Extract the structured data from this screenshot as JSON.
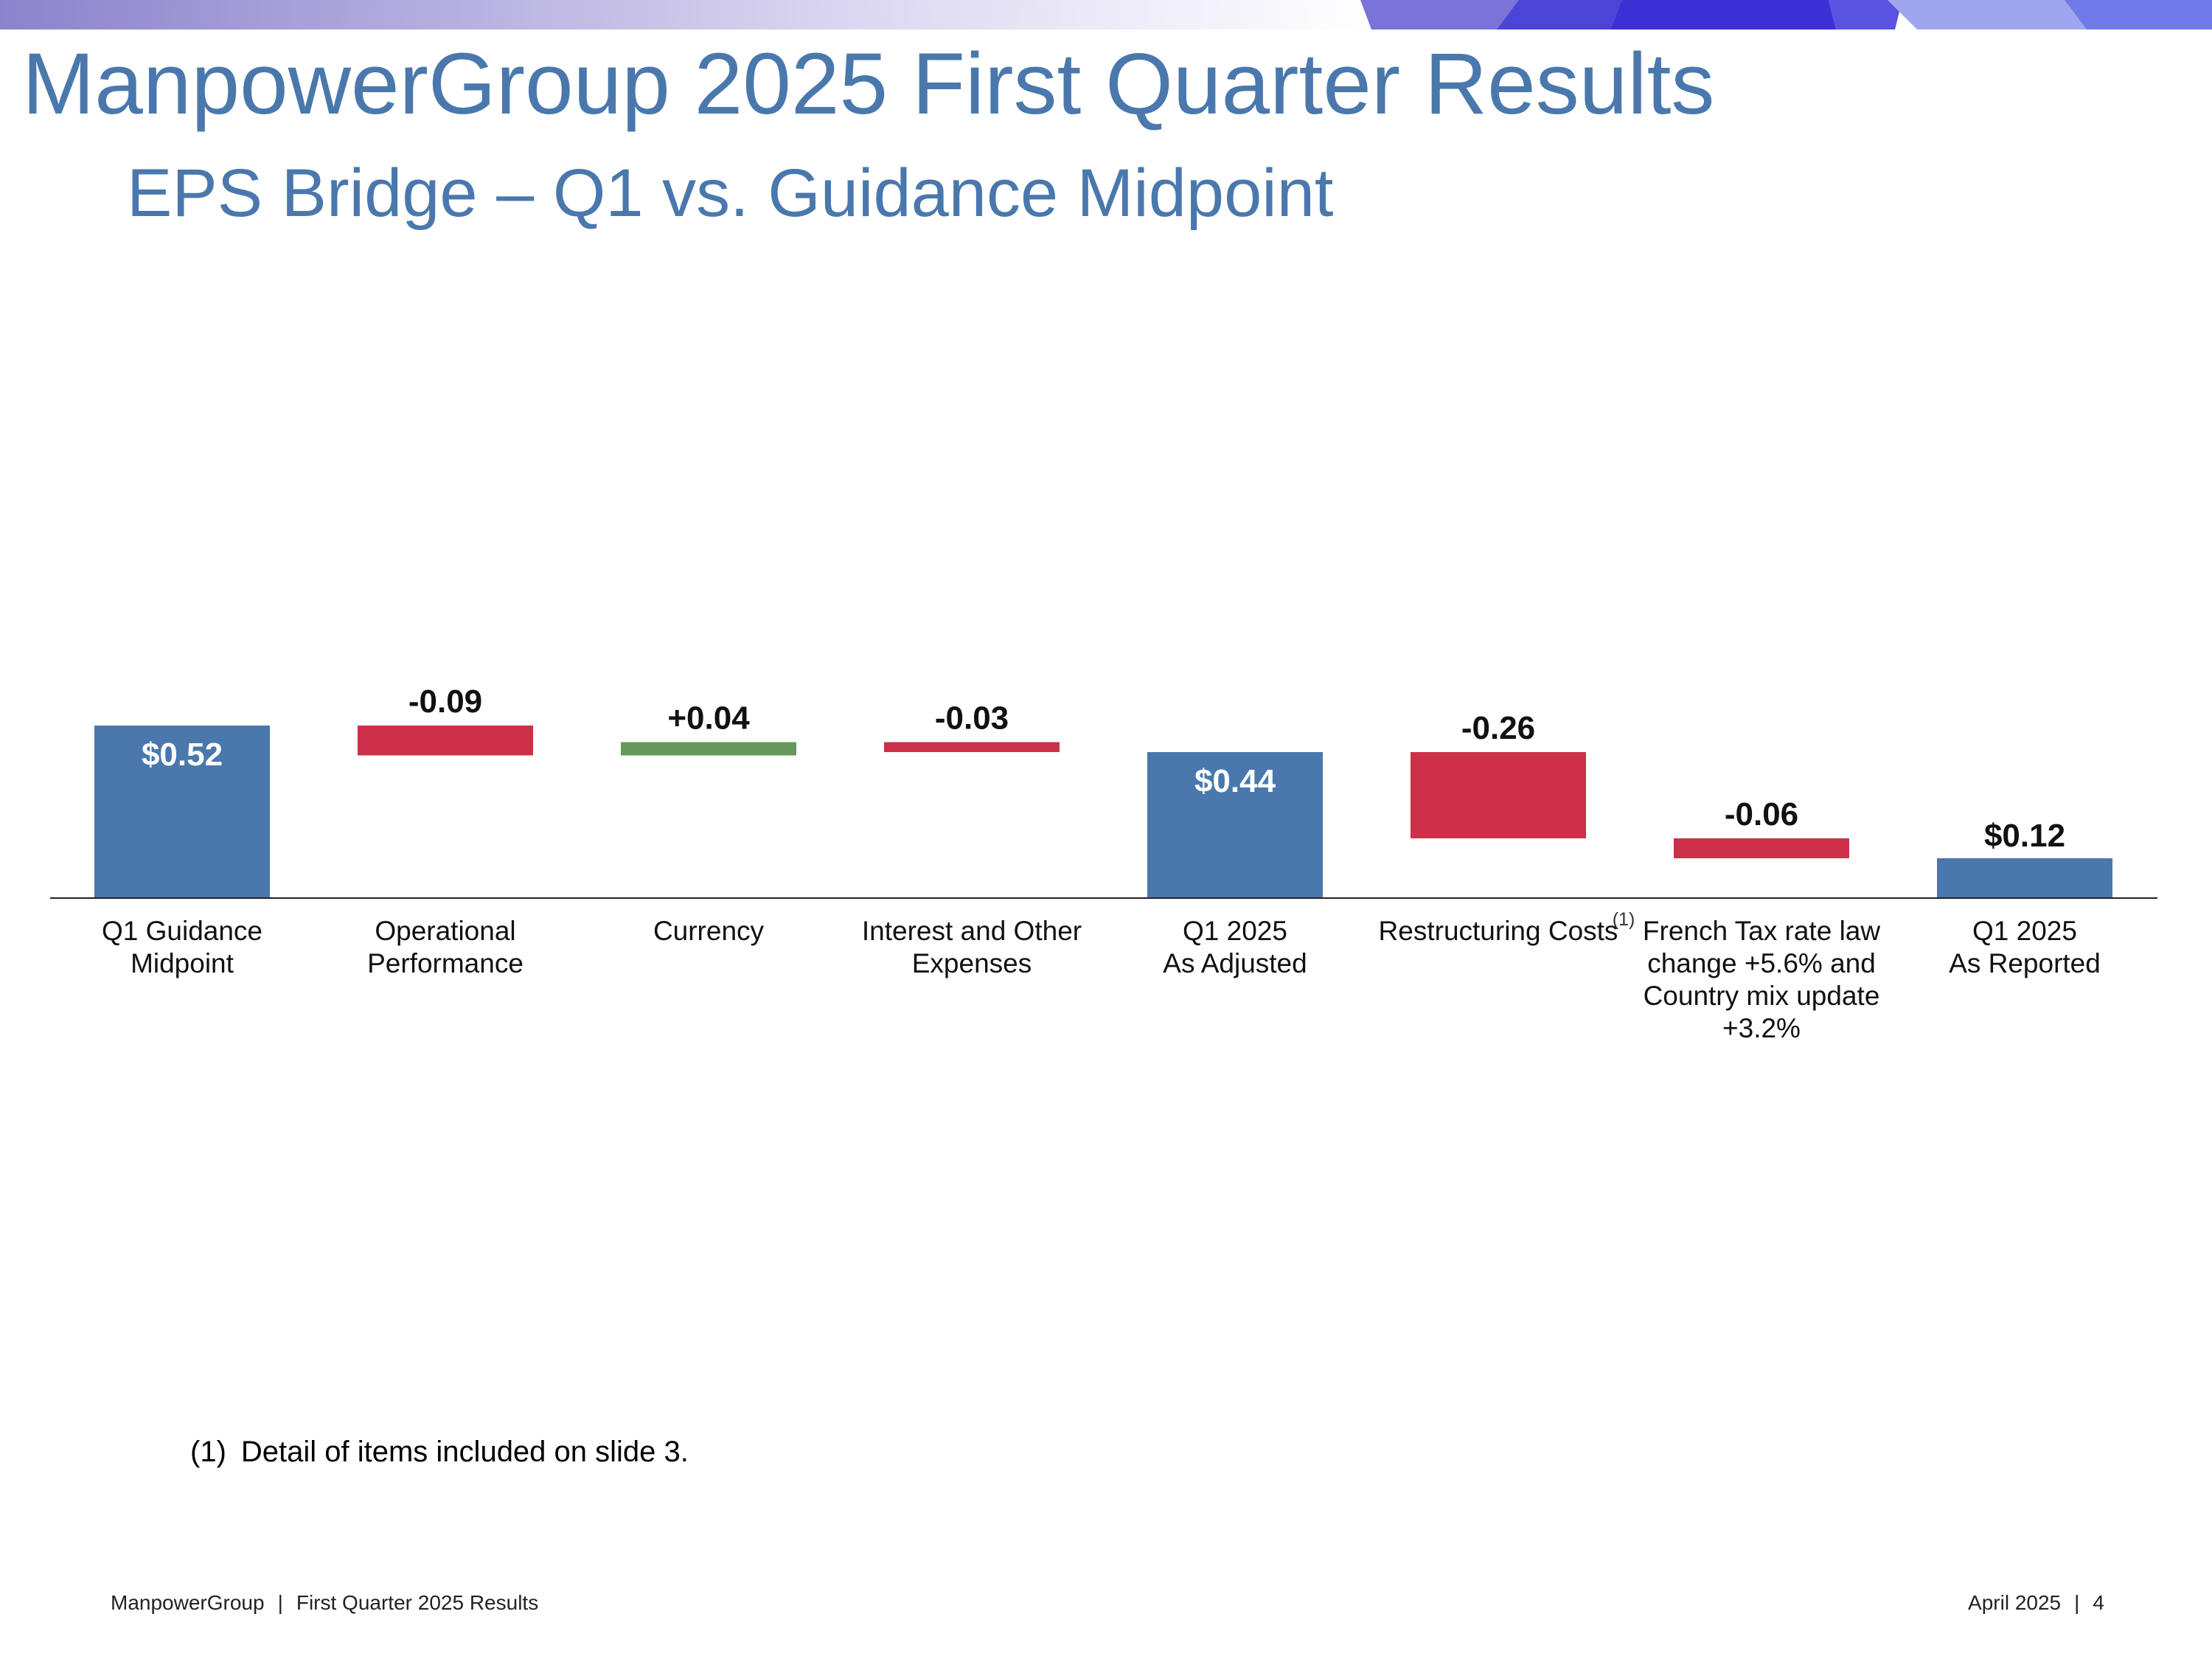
{
  "slide": {
    "title": "ManpowerGroup 2025 First Quarter Results",
    "subtitle": "EPS Bridge – Q1 vs. Guidance Midpoint"
  },
  "colors": {
    "title": "#4a78ad",
    "total_bar": "#4a78ad",
    "decrease_bar": "#cc3149",
    "increase_bar": "#64995a",
    "banner_start": "#8b83cc",
    "banner_mid": "#d9d4f0",
    "banner_accent": "#3b2fd6"
  },
  "chart_data": {
    "type": "bar",
    "subtype": "waterfall",
    "title": "EPS Bridge – Q1 vs. Guidance Midpoint",
    "xlabel": "",
    "ylabel": "",
    "unit": "$",
    "ylim": [
      0,
      0.6
    ],
    "grid": false,
    "legend": "none",
    "steps": [
      {
        "label_lines": [
          "Q1 Guidance",
          "Midpoint"
        ],
        "kind": "total",
        "value": 0.52,
        "data_label": "$0.52"
      },
      {
        "label_lines": [
          "Operational",
          "Performance"
        ],
        "kind": "decrease",
        "value": -0.09,
        "data_label": "-0.09"
      },
      {
        "label_lines": [
          "Currency"
        ],
        "kind": "increase",
        "value": 0.04,
        "data_label": "+0.04"
      },
      {
        "label_lines": [
          "Interest and Other",
          "Expenses"
        ],
        "kind": "decrease",
        "value": -0.03,
        "data_label": "-0.03"
      },
      {
        "label_lines": [
          "Q1 2025",
          "As Adjusted"
        ],
        "kind": "total",
        "value": 0.44,
        "data_label": "$0.44"
      },
      {
        "label_lines": [
          "Restructuring Costs"
        ],
        "kind": "decrease",
        "value": -0.26,
        "data_label": "-0.26",
        "footnote_ref": "(1)"
      },
      {
        "label_lines": [
          "French Tax rate law",
          "change +5.6% and",
          "Country mix update",
          "+3.2%"
        ],
        "kind": "decrease",
        "value": -0.06,
        "data_label": "-0.06"
      },
      {
        "label_lines": [
          "Q1 2025",
          "As Reported"
        ],
        "kind": "total",
        "value": 0.12,
        "data_label": "$0.12"
      }
    ]
  },
  "footnote": {
    "number": "(1)",
    "text": "Detail of items included on slide 3."
  },
  "footer": {
    "left_company": "ManpowerGroup",
    "left_separator": "|",
    "left_doc": "First Quarter 2025 Results",
    "right_date": "April 2025",
    "right_separator": "|",
    "right_page": "4"
  }
}
